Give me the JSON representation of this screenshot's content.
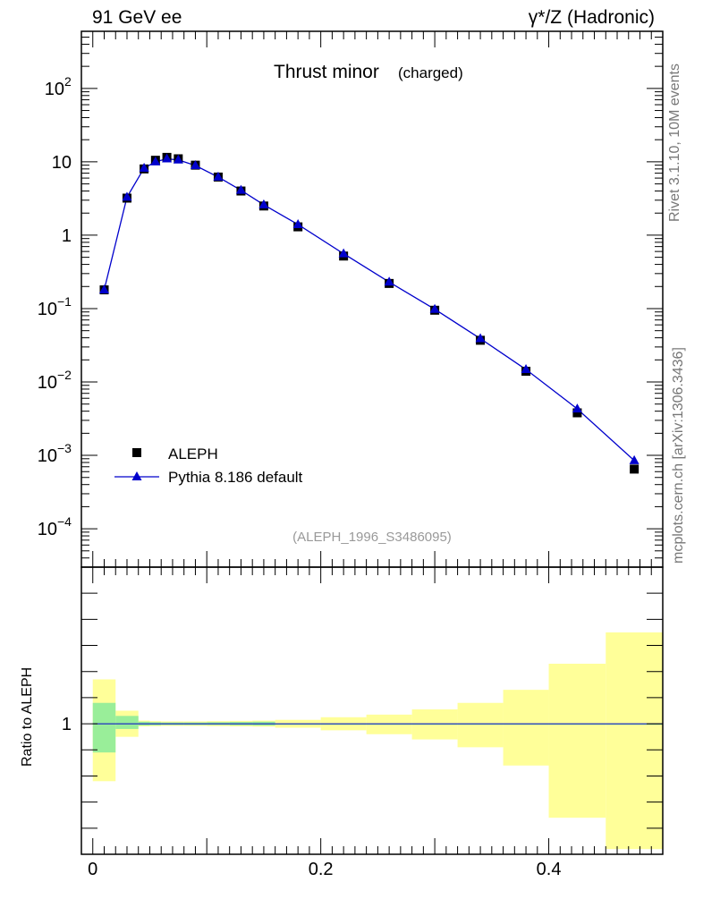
{
  "header": {
    "left": "91 GeV ee",
    "right": "γ*/Z (Hadronic)",
    "side_top": "Rivet 3.1.10,  10M events",
    "side_bottom": "mcplots.cern.ch [arXiv:1306.3436]"
  },
  "colors": {
    "data": "#000000",
    "mc": "#0000cc",
    "band_outer": "#ffff99",
    "band_inner": "#99ee99",
    "watermark": "#999999"
  },
  "chart_data": [
    {
      "type": "scatter",
      "title": "Thrust minor",
      "title_suffix": "(charged)",
      "watermark": "(ALEPH_1996_S3486095)",
      "yscale": "log",
      "ylim": [
        3e-05,
        600
      ],
      "xlim": [
        -0.01,
        0.5
      ],
      "ytick_labels": [
        {
          "value": 0.0001,
          "base": "10",
          "exp": "−4"
        },
        {
          "value": 0.001,
          "base": "10",
          "exp": "−3"
        },
        {
          "value": 0.01,
          "base": "10",
          "exp": "−2"
        },
        {
          "value": 0.1,
          "base": "10",
          "exp": "−1"
        },
        {
          "value": 1,
          "base": "1",
          "exp": ""
        },
        {
          "value": 10,
          "base": "10",
          "exp": ""
        },
        {
          "value": 100,
          "base": "10",
          "exp": "2"
        }
      ],
      "legend_position": "bottom-left",
      "series": [
        {
          "name": "ALEPH",
          "marker": "square",
          "x": [
            0.01,
            0.03,
            0.045,
            0.055,
            0.065,
            0.075,
            0.09,
            0.11,
            0.13,
            0.15,
            0.18,
            0.22,
            0.26,
            0.3,
            0.34,
            0.38,
            0.425,
            0.475
          ],
          "y": [
            0.18,
            3.2,
            8.0,
            10.5,
            11.5,
            11.0,
            9.0,
            6.2,
            4.0,
            2.5,
            1.3,
            0.52,
            0.22,
            0.095,
            0.037,
            0.014,
            0.0038,
            0.00065
          ]
        },
        {
          "name": "Pythia 8.186 default",
          "marker": "triangle",
          "x": [
            0.01,
            0.03,
            0.045,
            0.055,
            0.065,
            0.075,
            0.09,
            0.11,
            0.13,
            0.15,
            0.18,
            0.22,
            0.26,
            0.3,
            0.34,
            0.38,
            0.425,
            0.475
          ],
          "y": [
            0.18,
            3.3,
            8.2,
            10.0,
            11.0,
            10.6,
            8.9,
            6.2,
            4.1,
            2.6,
            1.4,
            0.56,
            0.23,
            0.098,
            0.039,
            0.0148,
            0.0043,
            0.00085
          ]
        }
      ]
    },
    {
      "type": "area",
      "ylabel": "Ratio to ALEPH",
      "ylim": [
        0.5,
        1.6
      ],
      "xlim": [
        -0.01,
        0.5
      ],
      "xtick_labels": [
        "0",
        "0.2",
        "0.4"
      ],
      "xticks": [
        0,
        0.2,
        0.4
      ],
      "ytick_labels": [
        "1"
      ],
      "yticks": [
        1
      ],
      "bins": [
        {
          "lo": 0.0,
          "hi": 0.02,
          "outer": [
            0.78,
            1.17
          ],
          "inner": [
            0.89,
            1.08
          ]
        },
        {
          "lo": 0.02,
          "hi": 0.04,
          "outer": [
            0.95,
            1.05
          ],
          "inner": [
            0.98,
            1.03
          ]
        },
        {
          "lo": 0.04,
          "hi": 0.05,
          "outer": [
            0.99,
            1.012
          ],
          "inner": [
            0.993,
            1.008
          ]
        },
        {
          "lo": 0.05,
          "hi": 0.06,
          "outer": [
            0.991,
            1.01
          ],
          "inner": [
            0.994,
            1.006
          ]
        },
        {
          "lo": 0.06,
          "hi": 0.07,
          "outer": [
            0.992,
            1.009
          ],
          "inner": [
            0.995,
            1.005
          ]
        },
        {
          "lo": 0.07,
          "hi": 0.08,
          "outer": [
            0.992,
            1.009
          ],
          "inner": [
            0.995,
            1.005
          ]
        },
        {
          "lo": 0.08,
          "hi": 0.1,
          "outer": [
            0.992,
            1.009
          ],
          "inner": [
            0.995,
            1.005
          ]
        },
        {
          "lo": 0.1,
          "hi": 0.12,
          "outer": [
            0.991,
            1.01
          ],
          "inner": [
            0.995,
            1.006
          ]
        },
        {
          "lo": 0.12,
          "hi": 0.14,
          "outer": [
            0.99,
            1.011
          ],
          "inner": [
            0.994,
            1.007
          ]
        },
        {
          "lo": 0.14,
          "hi": 0.16,
          "outer": [
            0.989,
            1.012
          ],
          "inner": [
            0.993,
            1.008
          ]
        },
        {
          "lo": 0.16,
          "hi": 0.2,
          "outer": [
            0.985,
            1.015
          ],
          "inner": [
            0.999,
            1.001
          ]
        },
        {
          "lo": 0.2,
          "hi": 0.24,
          "outer": [
            0.975,
            1.025
          ],
          "inner": [
            0.999,
            1.001
          ]
        },
        {
          "lo": 0.24,
          "hi": 0.28,
          "outer": [
            0.96,
            1.035
          ],
          "inner": [
            0.999,
            1.001
          ]
        },
        {
          "lo": 0.28,
          "hi": 0.32,
          "outer": [
            0.94,
            1.055
          ],
          "inner": [
            0.999,
            1.001
          ]
        },
        {
          "lo": 0.32,
          "hi": 0.36,
          "outer": [
            0.91,
            1.08
          ],
          "inner": [
            0.999,
            1.001
          ]
        },
        {
          "lo": 0.36,
          "hi": 0.4,
          "outer": [
            0.84,
            1.13
          ],
          "inner": [
            0.999,
            1.001
          ]
        },
        {
          "lo": 0.4,
          "hi": 0.45,
          "outer": [
            0.64,
            1.23
          ],
          "inner": [
            0.999,
            1.001
          ]
        },
        {
          "lo": 0.45,
          "hi": 0.5,
          "outer": [
            0.52,
            1.35
          ],
          "inner": [
            0.999,
            1.001
          ]
        }
      ]
    }
  ]
}
